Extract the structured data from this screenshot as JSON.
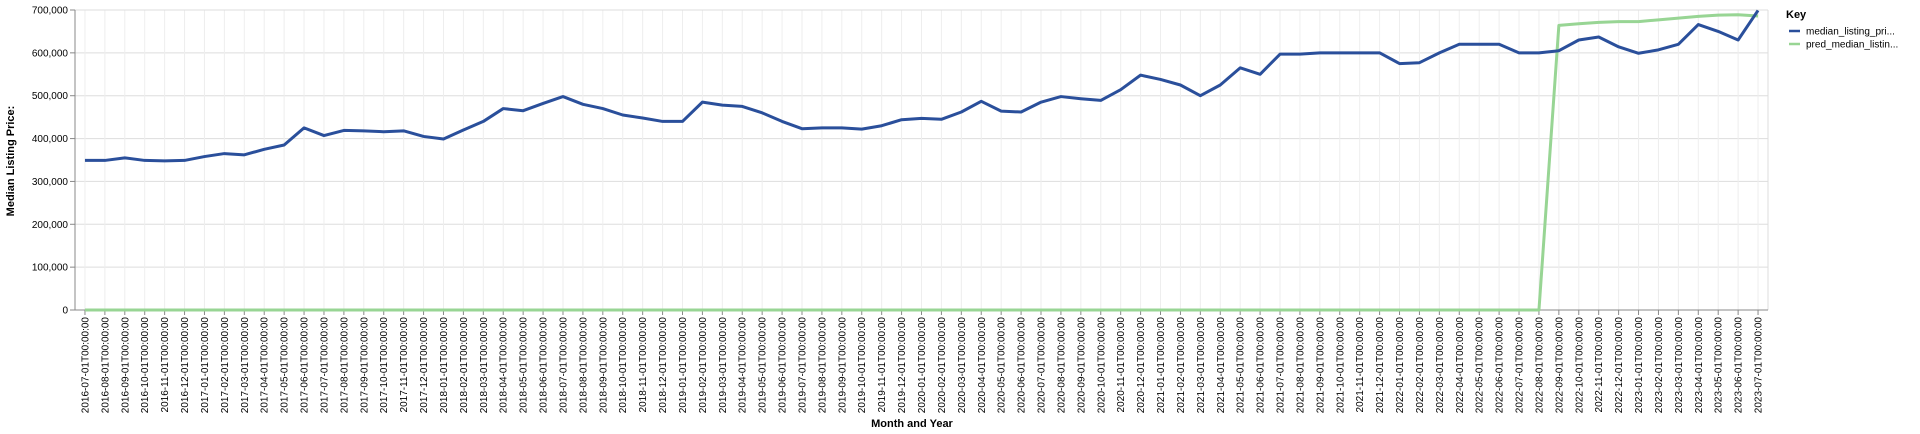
{
  "chart_data": {
    "type": "line",
    "xlabel": "Month and Year",
    "ylabel": "Median Listing Price:",
    "ylim": [
      0,
      700000
    ],
    "y_ticks": [
      0,
      100000,
      200000,
      300000,
      400000,
      500000,
      600000,
      700000
    ],
    "y_tick_labels": [
      "0",
      "100,000",
      "200,000",
      "300,000",
      "400,000",
      "500,000",
      "600,000",
      "700,000"
    ],
    "grid": true,
    "legend": {
      "title": "Key",
      "position": "right"
    },
    "x": [
      "2016-07-01T00:00:00",
      "2016-08-01T00:00:00",
      "2016-09-01T00:00:00",
      "2016-10-01T00:00:00",
      "2016-11-01T00:00:00",
      "2016-12-01T00:00:00",
      "2017-01-01T00:00:00",
      "2017-02-01T00:00:00",
      "2017-03-01T00:00:00",
      "2017-04-01T00:00:00",
      "2017-05-01T00:00:00",
      "2017-06-01T00:00:00",
      "2017-07-01T00:00:00",
      "2017-08-01T00:00:00",
      "2017-09-01T00:00:00",
      "2017-10-01T00:00:00",
      "2017-11-01T00:00:00",
      "2017-12-01T00:00:00",
      "2018-01-01T00:00:00",
      "2018-02-01T00:00:00",
      "2018-03-01T00:00:00",
      "2018-04-01T00:00:00",
      "2018-05-01T00:00:00",
      "2018-06-01T00:00:00",
      "2018-07-01T00:00:00",
      "2018-08-01T00:00:00",
      "2018-09-01T00:00:00",
      "2018-10-01T00:00:00",
      "2018-11-01T00:00:00",
      "2018-12-01T00:00:00",
      "2019-01-01T00:00:00",
      "2019-02-01T00:00:00",
      "2019-03-01T00:00:00",
      "2019-04-01T00:00:00",
      "2019-05-01T00:00:00",
      "2019-06-01T00:00:00",
      "2019-07-01T00:00:00",
      "2019-08-01T00:00:00",
      "2019-09-01T00:00:00",
      "2019-10-01T00:00:00",
      "2019-11-01T00:00:00",
      "2019-12-01T00:00:00",
      "2020-01-01T00:00:00",
      "2020-02-01T00:00:00",
      "2020-03-01T00:00:00",
      "2020-04-01T00:00:00",
      "2020-05-01T00:00:00",
      "2020-06-01T00:00:00",
      "2020-07-01T00:00:00",
      "2020-08-01T00:00:00",
      "2020-09-01T00:00:00",
      "2020-10-01T00:00:00",
      "2020-11-01T00:00:00",
      "2020-12-01T00:00:00",
      "2021-01-01T00:00:00",
      "2021-02-01T00:00:00",
      "2021-03-01T00:00:00",
      "2021-04-01T00:00:00",
      "2021-05-01T00:00:00",
      "2021-06-01T00:00:00",
      "2021-07-01T00:00:00",
      "2021-08-01T00:00:00",
      "2021-09-01T00:00:00",
      "2021-10-01T00:00:00",
      "2021-11-01T00:00:00",
      "2021-12-01T00:00:00",
      "2022-01-01T00:00:00",
      "2022-02-01T00:00:00",
      "2022-03-01T00:00:00",
      "2022-04-01T00:00:00",
      "2022-05-01T00:00:00",
      "2022-06-01T00:00:00",
      "2022-07-01T00:00:00",
      "2022-08-01T00:00:00",
      "2022-09-01T00:00:00",
      "2022-10-01T00:00:00",
      "2022-11-01T00:00:00",
      "2022-12-01T00:00:00",
      "2023-01-01T00:00:00",
      "2023-02-01T00:00:00",
      "2023-03-01T00:00:00",
      "2023-04-01T00:00:00",
      "2023-05-01T00:00:00",
      "2023-06-01T00:00:00",
      "2023-07-01T00:00:00"
    ],
    "x_tick_labels": [
      "2016-07-01T00:00:00",
      "2016-08-01T00:00:00",
      "2016-09-01T00:00:00",
      "2016-10-01T00:00:00",
      "2016-11-01T00:00:00",
      "2016-12-01T00:00:00",
      "2017-01-01T00:00:00",
      "2017-02-01T00:00:00",
      "2017-03-01T00:00:00",
      "2017-04-01T00:00:00",
      "2017-05-01T00:00:00",
      "2017-06-01T00:00:00",
      "2017-07-01T00:00:00",
      "2017-08-01T00:00:00",
      "2017-09-01T00:00:00",
      "2017-10-01T00:00:00",
      "2017-11-01T00:00:00",
      "2017-12-01T00:00:00",
      "2018-01-01T00:00:00",
      "2018-02-01T00:00:00",
      "2018-03-01T00:00:00",
      "2018-04-01T00:00:00",
      "2018-05-01T00:00:00",
      "2018-06-01T00:00:00",
      "2018-07-01T00:00:00",
      "2018-08-01T00:00:00",
      "2018-09-01T00:00:00",
      "2018-10-01T00:00:00",
      "2018-11-01T00:00:00",
      "2018-12-01T00:00:00",
      "2019-01-01T00:00:00",
      "2019-02-01T00:00:00",
      "2019-03-01T00:00:00",
      "2019-04-01T00:00:00",
      "2019-05-01T00:00:00",
      "2019-06-01T00:00:00",
      "2019-07-01T00:00:00",
      "2019-08-01T00:00:00",
      "2019-09-01T00:00:00",
      "2019-10-01T00:00:00",
      "2019-11-01T00:00:00",
      "2019-12-01T00:00:00",
      "2020-01-01T00:00:00",
      "2020-02-01T00:00:00",
      "2020-03-01T00:00:00",
      "2020-04-01T00:00:00",
      "2020-05-01T00:00:00",
      "2020-06-01T00:00:00",
      "2020-07-01T00:00:00",
      "2020-08-01T00:00:00",
      "2020-09-01T00:00:00",
      "2020-10-01T00:00:00",
      "2020-11-01T00:00:00",
      "2020-12-01T00:00:00",
      "2021-01-01T00:00:00",
      "2021-02-01T00:00:00",
      "2021-03-01T00:00:00",
      "2021-04-01T00:00:00",
      "2021-05-01T00:00:00",
      "2021-06-01T00:00:00",
      "2021-07-01T00:00:00",
      "2021-08-01T00:00:00",
      "2021-09-01T00:00:00",
      "2021-10-01T00:00:00",
      "2021-11-01T00:00:00",
      "2021-12-01T00:00:00",
      "2022-01-01T00:00:00",
      "2022-02-01T00:00:00",
      "2022-03-01T00:00:00",
      "2022-04-01T00:00:00",
      "2022-05-01T00:00:00",
      "2022-06-01T00:00:00",
      "2022-07-01T00:00:00",
      "2022-08-01T00:00:00",
      "2022-09-01T00:00:00",
      "2022-10-01T00:00:00",
      "2022-11-01T00:00:00",
      "2022-12-01T00:00:00",
      "2023-01-01T00:00:00",
      "2023-02-01T00:00:00",
      "2023-03-01T00:00:00",
      "2023-04-01T00:00:00",
      "2023-05-01T00:00:00",
      "2023-06-01T00:00:00",
      "2023-07-01T00:00:00"
    ],
    "series": [
      {
        "name": "median_listing_price",
        "legend_label": "median_listing_pri...",
        "color": "#2a4f9b",
        "values": [
          349000,
          349000,
          355000,
          349000,
          348000,
          349000,
          358000,
          365000,
          362000,
          375000,
          385000,
          425000,
          407000,
          419000,
          418000,
          416000,
          418000,
          405000,
          399000,
          420000,
          440000,
          470000,
          465000,
          482000,
          498000,
          480000,
          470000,
          455000,
          448000,
          440000,
          440000,
          485000,
          478000,
          475000,
          460000,
          440000,
          423000,
          425000,
          425000,
          422000,
          430000,
          444000,
          447000,
          445000,
          462000,
          487000,
          464000,
          462000,
          485000,
          498000,
          493000,
          489000,
          514000,
          548000,
          538000,
          525000,
          500000,
          525000,
          565000,
          550000,
          597000,
          597000,
          600000,
          600000,
          600000,
          600000,
          575000,
          577000,
          600000,
          620000,
          620000,
          620000,
          600000,
          600000,
          605000,
          630000,
          637000,
          614000,
          599000,
          607000,
          620000,
          666000,
          650000,
          630000,
          699000
        ]
      },
      {
        "name": "pred_median_listing_price",
        "legend_label": "pred_median_listin...",
        "color": "#98d594",
        "values": [
          0,
          0,
          0,
          0,
          0,
          0,
          0,
          0,
          0,
          0,
          0,
          0,
          0,
          0,
          0,
          0,
          0,
          0,
          0,
          0,
          0,
          0,
          0,
          0,
          0,
          0,
          0,
          0,
          0,
          0,
          0,
          0,
          0,
          0,
          0,
          0,
          0,
          0,
          0,
          0,
          0,
          0,
          0,
          0,
          0,
          0,
          0,
          0,
          0,
          0,
          0,
          0,
          0,
          0,
          0,
          0,
          0,
          0,
          0,
          0,
          0,
          0,
          0,
          0,
          0,
          0,
          0,
          0,
          0,
          0,
          0,
          0,
          0,
          0,
          664000,
          668000,
          671000,
          673000,
          673000,
          677000,
          681000,
          685000,
          688000,
          689000,
          686000
        ]
      }
    ]
  }
}
